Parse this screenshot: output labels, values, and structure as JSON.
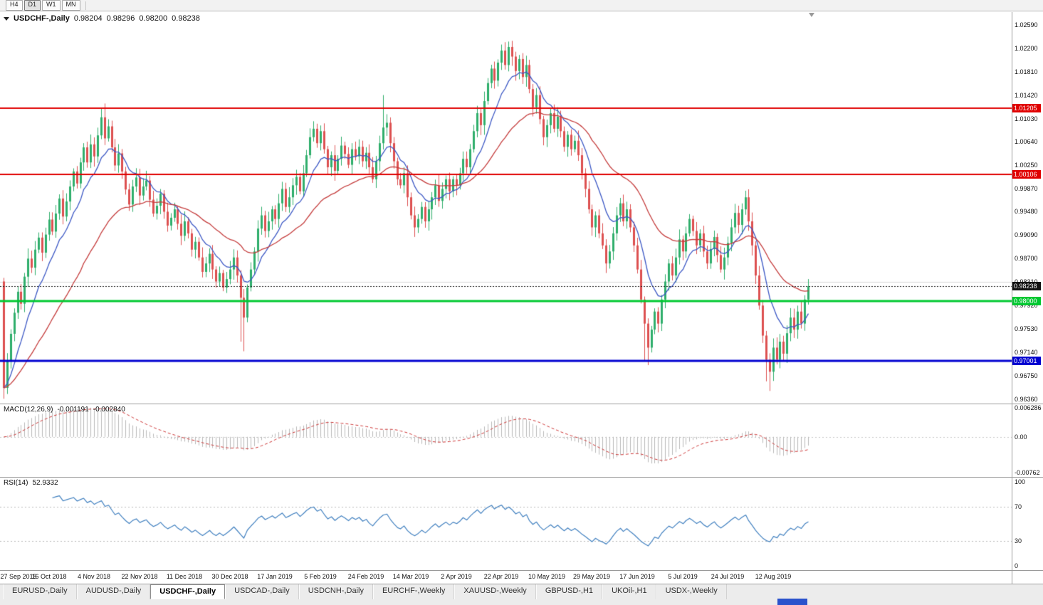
{
  "toolbar": {
    "timeframes": [
      "H4",
      "D1",
      "W1",
      "MN"
    ],
    "active": "D1"
  },
  "tabs": {
    "active_index": 2,
    "items": [
      "EURUSD-,Daily",
      "AUDUSD-,Daily",
      "USDCHF-,Daily",
      "USDCAD-,Daily",
      "USDCNH-,Daily",
      "EURCHF-,Weekly",
      "XAUUSD-,Weekly",
      "GBPUSD-,H1",
      "UKOil-,H1",
      "USDX-,Weekly"
    ]
  },
  "chart_data": {
    "type": "candlestick",
    "symbol": "USDCHF-,Daily",
    "ohlc_display": {
      "open": "0.98204",
      "high": "0.98296",
      "low": "0.98200",
      "close": "0.98238"
    },
    "price_axis": {
      "min": 0.9629,
      "max": 1.028
    },
    "price_ticks": [
      "1.02590",
      "1.02200",
      "1.01810",
      "1.01420",
      "1.01030",
      "1.00640",
      "1.00250",
      "0.99870",
      "0.99480",
      "0.99090",
      "0.98700",
      "0.98310",
      "0.97920",
      "0.97530",
      "0.97140",
      "0.96750",
      "0.96360"
    ],
    "x_labels": [
      {
        "label": "27 Sep 2018",
        "i": 0
      },
      {
        "label": "16 Oct 2018",
        "i": 13
      },
      {
        "label": "4 Nov 2018",
        "i": 26
      },
      {
        "label": "22 Nov 2018",
        "i": 39
      },
      {
        "label": "11 Dec 2018",
        "i": 52
      },
      {
        "label": "30 Dec 2018",
        "i": 65
      },
      {
        "label": "17 Jan 2019",
        "i": 78
      },
      {
        "label": "5 Feb 2019",
        "i": 91
      },
      {
        "label": "24 Feb 2019",
        "i": 104
      },
      {
        "label": "14 Mar 2019",
        "i": 117
      },
      {
        "label": "2 Apr 2019",
        "i": 130
      },
      {
        "label": "22 Apr 2019",
        "i": 143
      },
      {
        "label": "10 May 2019",
        "i": 156
      },
      {
        "label": "29 May 2019",
        "i": 169
      },
      {
        "label": "17 Jun 2019",
        "i": 182
      },
      {
        "label": "5 Jul 2019",
        "i": 195
      },
      {
        "label": "24 Jul 2019",
        "i": 208
      },
      {
        "label": "12 Aug 2019",
        "i": 221
      }
    ],
    "first_open": 0.9832,
    "closes": [
      0.9655,
      0.97,
      0.9745,
      0.978,
      0.9815,
      0.9795,
      0.984,
      0.987,
      0.9855,
      0.9885,
      0.9905,
      0.988,
      0.991,
      0.9935,
      0.9915,
      0.9945,
      0.997,
      0.994,
      0.9965,
      0.999,
      1.0015,
      0.9995,
      1.003,
      1.0055,
      1.003,
      1.006,
      1.004,
      1.0075,
      1.0105,
      1.007,
      1.009,
      1.0055,
      1.0025,
      1.0045,
      1.0015,
      0.9985,
      0.996,
      0.999,
      1.0005,
      0.9975,
      0.999,
      1.0,
      0.9968,
      0.9945,
      0.9958,
      0.9978,
      0.9948,
      0.9925,
      0.9938,
      0.9952,
      0.9928,
      0.9908,
      0.9932,
      0.9912,
      0.9885,
      0.9898,
      0.9872,
      0.9848,
      0.9862,
      0.9878,
      0.9852,
      0.9832,
      0.9846,
      0.9822,
      0.9836,
      0.9852,
      0.9872,
      0.9842,
      0.9805,
      0.9772,
      0.9822,
      0.9852,
      0.9882,
      0.992,
      0.9942,
      0.9916,
      0.9932,
      0.9952,
      0.9936,
      0.9962,
      0.9986,
      0.9956,
      0.9972,
      0.9992,
      1.0006,
      0.9982,
      1.0012,
      1.0042,
      1.0072,
      1.0086,
      1.0062,
      1.0082,
      1.0052,
      1.0022,
      1.0042,
      1.0016,
      1.0036,
      1.0058,
      1.0044,
      1.0026,
      1.0052,
      1.004,
      1.0056,
      1.0032,
      1.0046,
      1.0022,
      1.0002,
      1.0032,
      1.0062,
      1.0088,
      1.0096,
      1.0062,
      1.0032,
      1.0002,
      0.9992,
      1.0012,
      0.9972,
      0.9942,
      0.9922,
      0.9936,
      0.9956,
      0.9932,
      0.9952,
      0.9972,
      0.9992,
      0.9966,
      0.9986,
      1.0002,
      0.9982,
      1.0002,
      0.9992,
      1.0012,
      1.0036,
      1.0022,
      1.0052,
      1.0082,
      1.0112,
      1.0092,
      1.0132,
      1.0162,
      1.0186,
      1.0166,
      1.0196,
      1.0216,
      1.0192,
      1.0222,
      1.0206,
      1.0182,
      1.0202,
      1.0172,
      1.0192,
      1.0152,
      1.0122,
      1.0142,
      1.0102,
      1.0072,
      1.0092,
      1.0112,
      1.0086,
      1.0106,
      1.0082,
      1.0056,
      1.0076,
      1.0052,
      1.0066,
      1.0042,
      1.0012,
      0.9986,
      0.9952,
      0.9922,
      0.9942,
      0.9912,
      0.9892,
      0.9862,
      0.9882,
      0.9912,
      0.9942,
      0.9962,
      0.9932,
      0.9952,
      0.9922,
      0.9892,
      0.9852,
      0.9802,
      0.9762,
      0.9722,
      0.9752,
      0.9782,
      0.9762,
      0.9802,
      0.9832,
      0.9862,
      0.9842,
      0.9872,
      0.9902,
      0.9882,
      0.9912,
      0.9936,
      0.9916,
      0.9892,
      0.9912,
      0.9882,
      0.9862,
      0.9886,
      0.9906,
      0.9876,
      0.9852,
      0.9872,
      0.9896,
      0.9922,
      0.9946,
      0.9926,
      0.9952,
      0.9972,
      0.9932,
      0.9892,
      0.9842,
      0.9792,
      0.9742,
      0.9702,
      0.9682,
      0.9722,
      0.9702,
      0.9732,
      0.9712,
      0.9746,
      0.9772,
      0.9752,
      0.9782,
      0.9762,
      0.9802,
      0.98238
    ],
    "wick_overrides": {
      "0": {
        "high": 0.9838,
        "low": 0.9637
      },
      "29": {
        "high": 1.0128
      },
      "68": {
        "low": 0.9732
      },
      "69": {
        "low": 0.9716
      },
      "109": {
        "high": 1.0142
      },
      "145": {
        "high": 1.0231
      },
      "184": {
        "low": 0.9701
      },
      "185": {
        "low": 0.9693
      },
      "213": {
        "high": 0.9983
      },
      "219": {
        "low": 0.9666
      },
      "220": {
        "low": 0.965
      }
    },
    "hlines": [
      {
        "label": "1.01205",
        "value": 1.01205,
        "color": "#e00000",
        "width": 2
      },
      {
        "label": "1.00106",
        "value": 1.00106,
        "color": "#e00000",
        "width": 2
      },
      {
        "label": "0.98000",
        "value": 0.98,
        "color": "#00c830",
        "width": 3
      },
      {
        "label": "0.97001",
        "value": 0.97001,
        "color": "#0000d0",
        "width": 3
      }
    ],
    "current_price": {
      "label": "0.98238",
      "value": 0.98238,
      "color": "#111111"
    },
    "grid_price": 0.9831,
    "moving_averages": [
      {
        "period": 10,
        "color": "#3b57c4"
      },
      {
        "period": 34,
        "color": "#c43b3b"
      }
    ],
    "indicators": {
      "macd": {
        "title": "MACD(12,26,9)",
        "value_main": "-0.001191",
        "value_signal": "-0.002840",
        "params": {
          "fast": 12,
          "slow": 26,
          "signal": 9
        },
        "axis": {
          "max": 0.007,
          "min": -0.0086
        },
        "scale": [
          {
            "label": "0.006286",
            "value": 0.006286
          },
          {
            "label": "0.00",
            "value": 0
          },
          {
            "label": "-0.00762",
            "value": -0.00762
          }
        ],
        "hist_color": "#b8b8b8",
        "signal_color": "#cc3333"
      },
      "rsi": {
        "title": "RSI(14)",
        "value": "52.9332",
        "period": 14,
        "levels": [
          70,
          30
        ],
        "scale": [
          {
            "label": "100",
            "value": 100
          },
          {
            "label": "70",
            "value": 70
          },
          {
            "label": "30",
            "value": 30
          },
          {
            "label": "0",
            "value": 0
          }
        ],
        "line_color": "#3f7fbf"
      }
    },
    "colors": {
      "bull": "#2fae6b",
      "bear": "#dd5050"
    }
  }
}
